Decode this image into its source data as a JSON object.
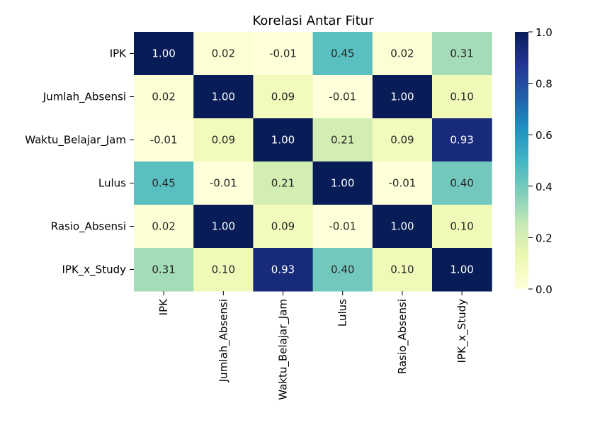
{
  "chart_data": {
    "type": "heatmap",
    "title": "Korelasi Antar Fitur",
    "xlabel": "",
    "ylabel": "",
    "rows": [
      "IPK",
      "Jumlah_Absensi",
      "Waktu_Belajar_Jam",
      "Lulus",
      "Rasio_Absensi",
      "IPK_x_Study"
    ],
    "columns": [
      "IPK",
      "Jumlah_Absensi",
      "Waktu_Belajar_Jam",
      "Lulus",
      "Rasio_Absensi",
      "IPK_x_Study"
    ],
    "values": [
      [
        1.0,
        0.02,
        -0.01,
        0.45,
        0.02,
        0.31
      ],
      [
        0.02,
        1.0,
        0.09,
        -0.01,
        1.0,
        0.1
      ],
      [
        -0.01,
        0.09,
        1.0,
        0.21,
        0.09,
        0.93
      ],
      [
        0.45,
        -0.01,
        0.21,
        1.0,
        -0.01,
        0.4
      ],
      [
        0.02,
        1.0,
        0.09,
        -0.01,
        1.0,
        0.1
      ],
      [
        0.31,
        0.1,
        0.93,
        0.4,
        0.1,
        1.0
      ]
    ],
    "annotations_format": "2 decimals",
    "colorbar": {
      "colormap": "YlGnBu",
      "range": [
        0.0,
        1.0
      ],
      "ticks": [
        0.0,
        0.2,
        0.4,
        0.6,
        0.8,
        1.0
      ],
      "tick_labels": [
        "0.0",
        "0.2",
        "0.4",
        "0.6",
        "0.8",
        "1.0"
      ],
      "colors": [
        "#ffffd9",
        "#edf8b1",
        "#c7e9b4",
        "#7fcdbb",
        "#41b6c4",
        "#1d91c0",
        "#225ea8",
        "#253494",
        "#081d58"
      ]
    }
  }
}
